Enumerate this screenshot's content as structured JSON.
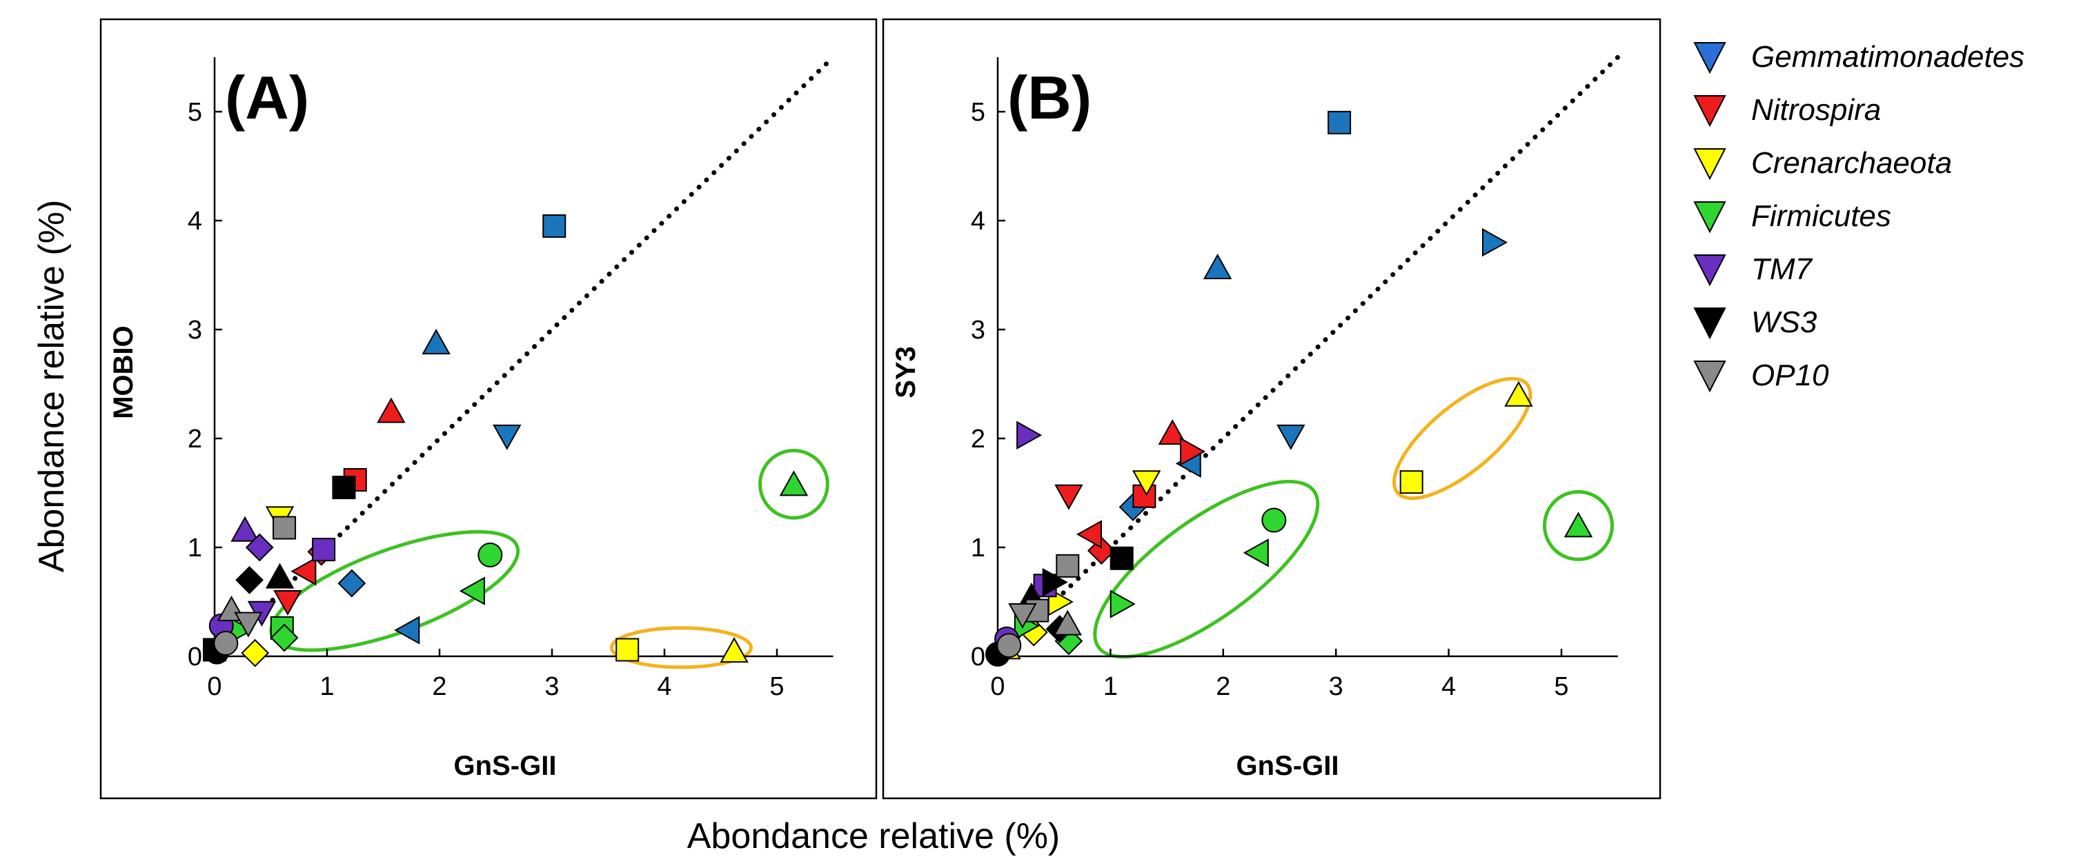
{
  "figure": {
    "x_common_title": "Abondance relative (%)",
    "y_common_title": "Abondance relative (%)"
  },
  "colors": {
    "Gemmatimonadetes": "#2a6fd6",
    "Nitrospira": "#ee1c1c",
    "Crenarchaeota": "#ffff00",
    "Firmicutes": "#2fd62f",
    "TM7": "#6a2fbf",
    "WS3": "#000000",
    "OP10": "#8a8a8a",
    "marker_blue": "#1b75bc",
    "green_ring": "#3cc21f",
    "orange_ring": "#f5b21b"
  },
  "legend": {
    "title": "",
    "items": [
      {
        "label": "Gemmatimonadetes",
        "color": "#2a6fd6"
      },
      {
        "label": "Nitrospira",
        "color": "#ee1c1c"
      },
      {
        "label": "Crenarchaeota",
        "color": "#ffff00"
      },
      {
        "label": "Firmicutes",
        "color": "#2fd62f"
      },
      {
        "label": "TM7",
        "color": "#6a2fbf"
      },
      {
        "label": "WS3",
        "color": "#000000"
      },
      {
        "label": "OP10",
        "color": "#8a8a8a"
      }
    ]
  },
  "chart_data": [
    {
      "type": "scatter",
      "panel_label": "(A)",
      "xlabel": "GnS-GII",
      "ylabel": "MOBIO",
      "xlim": [
        0,
        5.5
      ],
      "ylim": [
        0,
        5.5
      ],
      "xticks": [
        0,
        1,
        2,
        3,
        4,
        5
      ],
      "yticks": [
        0,
        1,
        2,
        3,
        4,
        5
      ],
      "identity_line": true,
      "points": [
        {
          "x": 3.02,
          "y": 3.95,
          "shape": "square",
          "color": "#1b75bc"
        },
        {
          "x": 1.97,
          "y": 2.88,
          "shape": "triangle-up",
          "color": "#1b75bc"
        },
        {
          "x": 2.6,
          "y": 2.02,
          "shape": "triangle-down",
          "color": "#1b75bc"
        },
        {
          "x": 1.72,
          "y": 0.24,
          "shape": "triangle-left",
          "color": "#1b75bc"
        },
        {
          "x": 1.22,
          "y": 0.67,
          "shape": "diamond",
          "color": "#1b75bc"
        },
        {
          "x": 1.57,
          "y": 2.25,
          "shape": "triangle-up",
          "color": "#ee1c1c"
        },
        {
          "x": 1.25,
          "y": 1.62,
          "shape": "square",
          "color": "#ee1c1c"
        },
        {
          "x": 0.95,
          "y": 0.96,
          "shape": "diamond",
          "color": "#ee1c1c"
        },
        {
          "x": 0.65,
          "y": 0.5,
          "shape": "triangle-down",
          "color": "#ee1c1c"
        },
        {
          "x": 0.8,
          "y": 0.78,
          "shape": "triangle-left",
          "color": "#ee1c1c"
        },
        {
          "x": 3.67,
          "y": 0.06,
          "shape": "square",
          "color": "#ffff00"
        },
        {
          "x": 4.62,
          "y": 0.05,
          "shape": "triangle-up",
          "color": "#ffff00"
        },
        {
          "x": 0.58,
          "y": 1.27,
          "shape": "triangle-down",
          "color": "#ffff00"
        },
        {
          "x": 0.36,
          "y": 0.03,
          "shape": "diamond",
          "color": "#ffff00"
        },
        {
          "x": 5.15,
          "y": 1.58,
          "shape": "triangle-up",
          "color": "#2fd62f"
        },
        {
          "x": 2.45,
          "y": 0.93,
          "shape": "circle",
          "color": "#2fd62f"
        },
        {
          "x": 2.3,
          "y": 0.6,
          "shape": "triangle-left",
          "color": "#2fd62f"
        },
        {
          "x": 0.6,
          "y": 0.26,
          "shape": "square",
          "color": "#2fd62f"
        },
        {
          "x": 0.62,
          "y": 0.17,
          "shape": "diamond",
          "color": "#2fd62f"
        },
        {
          "x": 0.22,
          "y": 0.24,
          "shape": "triangle-right",
          "color": "#2fd62f"
        },
        {
          "x": 0.27,
          "y": 1.16,
          "shape": "triangle-up",
          "color": "#6a2fbf"
        },
        {
          "x": 0.4,
          "y": 1.0,
          "shape": "diamond",
          "color": "#6a2fbf"
        },
        {
          "x": 0.97,
          "y": 0.98,
          "shape": "square",
          "color": "#6a2fbf"
        },
        {
          "x": 0.06,
          "y": 0.28,
          "shape": "circle",
          "color": "#6a2fbf"
        },
        {
          "x": 0.42,
          "y": 0.4,
          "shape": "triangle-down",
          "color": "#6a2fbf"
        },
        {
          "x": 1.15,
          "y": 1.55,
          "shape": "square",
          "color": "#000000"
        },
        {
          "x": 0.31,
          "y": 0.7,
          "shape": "diamond",
          "color": "#000000"
        },
        {
          "x": 0.58,
          "y": 0.73,
          "shape": "triangle-up",
          "color": "#000000"
        },
        {
          "x": 0.02,
          "y": 0.04,
          "shape": "circle",
          "color": "#000000"
        },
        {
          "x": 0.0,
          "y": 0.06,
          "shape": "square",
          "color": "#000000"
        },
        {
          "x": 0.62,
          "y": 1.18,
          "shape": "square",
          "color": "#8a8a8a"
        },
        {
          "x": 0.15,
          "y": 0.43,
          "shape": "triangle-up",
          "color": "#8a8a8a"
        },
        {
          "x": 0.3,
          "y": 0.3,
          "shape": "triangle-down",
          "color": "#8a8a8a"
        },
        {
          "x": 0.1,
          "y": 0.12,
          "shape": "circle",
          "color": "#8a8a8a"
        }
      ],
      "rings": [
        {
          "type": "ellipse",
          "cx": 1.6,
          "cy": 0.6,
          "rx": 1.16,
          "ry": 0.38,
          "angle": -20,
          "color": "#3cc21f"
        },
        {
          "type": "ellipse",
          "cx": 4.15,
          "cy": 0.08,
          "rx": 0.62,
          "ry": 0.18,
          "angle": 0,
          "color": "#f5b21b"
        },
        {
          "type": "circle",
          "cx": 5.15,
          "cy": 1.58,
          "r": 0.3,
          "color": "#3cc21f"
        }
      ]
    },
    {
      "type": "scatter",
      "panel_label": "(B)",
      "xlabel": "GnS-GII",
      "ylabel": "SY3",
      "xlim": [
        0,
        5.5
      ],
      "ylim": [
        0,
        5.5
      ],
      "xticks": [
        0,
        1,
        2,
        3,
        4,
        5
      ],
      "yticks": [
        0,
        1,
        2,
        3,
        4,
        5
      ],
      "identity_line": true,
      "points": [
        {
          "x": 3.03,
          "y": 4.9,
          "shape": "square",
          "color": "#1b75bc"
        },
        {
          "x": 1.95,
          "y": 3.57,
          "shape": "triangle-up",
          "color": "#1b75bc"
        },
        {
          "x": 4.4,
          "y": 3.8,
          "shape": "triangle-right",
          "color": "#1b75bc"
        },
        {
          "x": 2.6,
          "y": 2.02,
          "shape": "triangle-down",
          "color": "#1b75bc"
        },
        {
          "x": 1.7,
          "y": 1.77,
          "shape": "triangle-left",
          "color": "#1b75bc"
        },
        {
          "x": 1.2,
          "y": 1.37,
          "shape": "diamond",
          "color": "#1b75bc"
        },
        {
          "x": 1.55,
          "y": 2.05,
          "shape": "triangle-up",
          "color": "#ee1c1c"
        },
        {
          "x": 1.72,
          "y": 1.88,
          "shape": "triangle-right",
          "color": "#ee1c1c"
        },
        {
          "x": 0.63,
          "y": 1.47,
          "shape": "triangle-down",
          "color": "#ee1c1c"
        },
        {
          "x": 1.3,
          "y": 1.47,
          "shape": "square",
          "color": "#ee1c1c"
        },
        {
          "x": 0.92,
          "y": 0.97,
          "shape": "diamond",
          "color": "#ee1c1c"
        },
        {
          "x": 0.82,
          "y": 1.12,
          "shape": "triangle-left",
          "color": "#ee1c1c"
        },
        {
          "x": 4.62,
          "y": 2.4,
          "shape": "triangle-up",
          "color": "#ffff00"
        },
        {
          "x": 3.67,
          "y": 1.6,
          "shape": "square",
          "color": "#ffff00"
        },
        {
          "x": 1.32,
          "y": 1.6,
          "shape": "triangle-down",
          "color": "#ffff00"
        },
        {
          "x": 0.55,
          "y": 0.5,
          "shape": "triangle-right",
          "color": "#ffff00"
        },
        {
          "x": 0.08,
          "y": 0.08,
          "shape": "triangle-up",
          "color": "#ffff00"
        },
        {
          "x": 0.32,
          "y": 0.22,
          "shape": "diamond",
          "color": "#ffff00"
        },
        {
          "x": 5.15,
          "y": 1.2,
          "shape": "triangle-up",
          "color": "#2fd62f"
        },
        {
          "x": 2.45,
          "y": 1.25,
          "shape": "circle",
          "color": "#2fd62f"
        },
        {
          "x": 2.3,
          "y": 0.95,
          "shape": "triangle-left",
          "color": "#2fd62f"
        },
        {
          "x": 1.1,
          "y": 0.48,
          "shape": "triangle-right",
          "color": "#2fd62f"
        },
        {
          "x": 0.63,
          "y": 0.14,
          "shape": "diamond",
          "color": "#2fd62f"
        },
        {
          "x": 0.25,
          "y": 0.28,
          "shape": "triangle-right",
          "color": "#2fd62f"
        },
        {
          "x": 0.27,
          "y": 2.03,
          "shape": "triangle-right",
          "color": "#6a2fbf"
        },
        {
          "x": 0.42,
          "y": 0.65,
          "shape": "square",
          "color": "#6a2fbf"
        },
        {
          "x": 0.08,
          "y": 0.16,
          "shape": "circle",
          "color": "#6a2fbf"
        },
        {
          "x": 1.1,
          "y": 0.9,
          "shape": "square",
          "color": "#000000"
        },
        {
          "x": 0.5,
          "y": 0.68,
          "shape": "triangle-right",
          "color": "#000000"
        },
        {
          "x": 0.3,
          "y": 0.55,
          "shape": "triangle-up",
          "color": "#000000"
        },
        {
          "x": 0.55,
          "y": 0.25,
          "shape": "diamond",
          "color": "#000000"
        },
        {
          "x": 0.0,
          "y": 0.02,
          "shape": "circle",
          "color": "#000000"
        },
        {
          "x": 0.62,
          "y": 0.83,
          "shape": "square",
          "color": "#8a8a8a"
        },
        {
          "x": 0.35,
          "y": 0.42,
          "shape": "square",
          "color": "#8a8a8a"
        },
        {
          "x": 0.22,
          "y": 0.38,
          "shape": "triangle-down",
          "color": "#8a8a8a"
        },
        {
          "x": 0.1,
          "y": 0.1,
          "shape": "circle",
          "color": "#8a8a8a"
        },
        {
          "x": 0.62,
          "y": 0.3,
          "shape": "triangle-up",
          "color": "#8a8a8a"
        }
      ],
      "rings": [
        {
          "type": "ellipse",
          "cx": 1.85,
          "cy": 0.8,
          "rx": 1.18,
          "ry": 0.45,
          "angle": -36,
          "color": "#3cc21f"
        },
        {
          "type": "ellipse",
          "cx": 4.12,
          "cy": 2.0,
          "rx": 0.75,
          "ry": 0.3,
          "angle": -40,
          "color": "#f5b21b"
        },
        {
          "type": "circle",
          "cx": 5.15,
          "cy": 1.2,
          "r": 0.3,
          "color": "#3cc21f"
        }
      ]
    }
  ]
}
